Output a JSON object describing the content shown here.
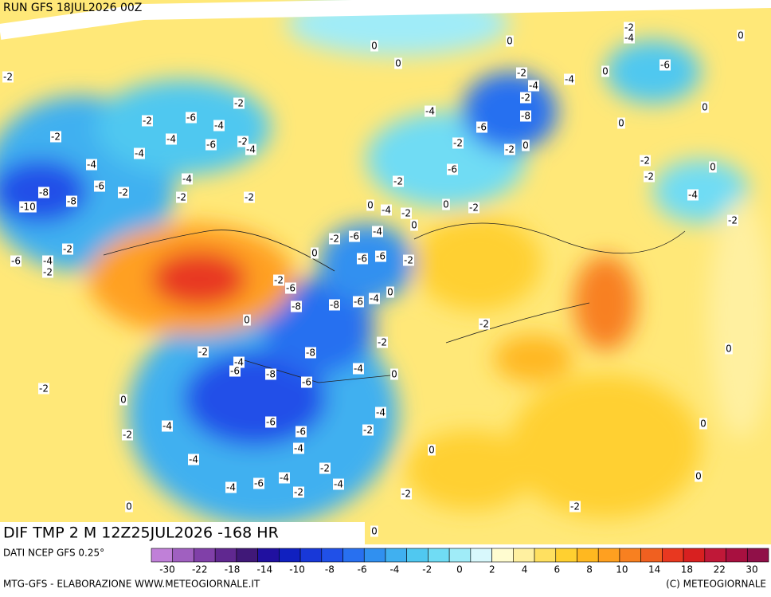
{
  "header": {
    "run": "RUN GFS 18JUL2026 00Z",
    "title": "DIF TMP 2 M 12Z25JUL2026 -168 HR",
    "source": "DATI NCEP GFS 0.25°"
  },
  "footer": {
    "left": "MTG-GFS - ELABORAZIONE WWW.METEOGIORNALE.IT",
    "right": "(C) METEOGIORNALE"
  },
  "legend": {
    "colors": [
      "#c080d8",
      "#a060c0",
      "#8040a8",
      "#602890",
      "#401878",
      "#2010a0",
      "#1020c0",
      "#1838d8",
      "#2050e8",
      "#2870f0",
      "#3090f0",
      "#40b0f0",
      "#50c8f0",
      "#70dcf4",
      "#a0ecf8",
      "#d8f8fc",
      "#fffcd0",
      "#fff0a0",
      "#ffe060",
      "#ffd030",
      "#ffb820",
      "#ffa020",
      "#f88020",
      "#f06020",
      "#e83820",
      "#d82020",
      "#c01838",
      "#a81040",
      "#901048"
    ],
    "ticks": [
      -30,
      -22,
      -18,
      -14,
      -10,
      -8,
      -6,
      -4,
      -2,
      0,
      2,
      4,
      6,
      8,
      10,
      14,
      18,
      22,
      30
    ]
  },
  "contour_labels": [
    -2,
    -4,
    0,
    0,
    0,
    0,
    -6,
    -2,
    -4,
    -4,
    0,
    -2,
    -2,
    -2,
    -4,
    -8,
    0,
    -6,
    -2,
    -4,
    -6,
    0,
    -2,
    -4,
    -6,
    -2,
    -4,
    -4,
    -2,
    -2,
    0,
    -4,
    -2,
    0,
    -6,
    -4,
    -6,
    -8,
    -2,
    -2,
    -2,
    -2,
    -2,
    -10,
    -8,
    -4,
    0,
    -4,
    -2,
    0,
    -2,
    0,
    -2,
    -2,
    -6,
    -4,
    -2,
    -6,
    -4,
    -2,
    -6,
    -6,
    -2,
    0,
    -2,
    -6,
    -8,
    -8,
    -6,
    -4,
    0,
    -2,
    0,
    -2,
    -8,
    -2,
    -4,
    -6,
    -8,
    -4,
    0,
    0,
    -6,
    -2,
    0,
    -4,
    -6,
    -6,
    -4,
    -2,
    -2,
    0,
    -4,
    -4,
    0,
    -2,
    -4,
    -6,
    -4,
    -4,
    -2,
    -2,
    0,
    -2,
    0,
    0
  ]
}
